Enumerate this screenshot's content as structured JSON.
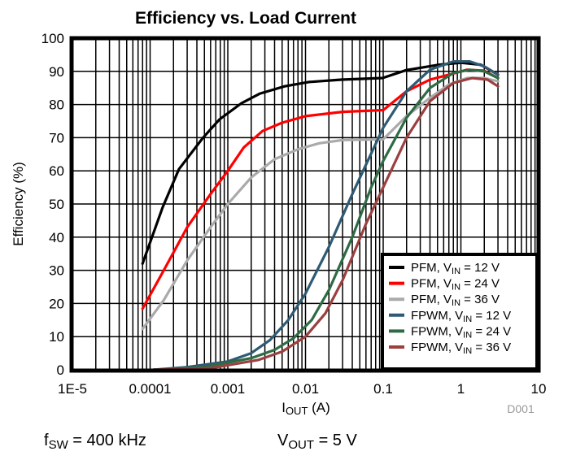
{
  "chart_data": {
    "type": "line",
    "title": "Efficiency vs. Load Current",
    "xlabel": {
      "main": "I",
      "sub": "OUT",
      "rest": " (A)"
    },
    "ylabel": "Efficiency (%)",
    "xscale": "log",
    "xlim": [
      1e-05,
      10
    ],
    "ylim": [
      0,
      100
    ],
    "grid": true,
    "xticks": [
      {
        "value": 1e-05,
        "label": "1E-5"
      },
      {
        "value": 0.0001,
        "label": "0.0001"
      },
      {
        "value": 0.001,
        "label": "0.001"
      },
      {
        "value": 0.01,
        "label": "0.01"
      },
      {
        "value": 0.1,
        "label": "0.1"
      },
      {
        "value": 1,
        "label": "1"
      },
      {
        "value": 10,
        "label": "10"
      }
    ],
    "yticks": [
      {
        "value": 0,
        "label": "0"
      },
      {
        "value": 10,
        "label": "10"
      },
      {
        "value": 20,
        "label": "20"
      },
      {
        "value": 30,
        "label": "30"
      },
      {
        "value": 40,
        "label": "40"
      },
      {
        "value": 50,
        "label": "50"
      },
      {
        "value": 60,
        "label": "60"
      },
      {
        "value": 70,
        "label": "70"
      },
      {
        "value": 80,
        "label": "80"
      },
      {
        "value": 90,
        "label": "90"
      },
      {
        "value": 100,
        "label": "100"
      }
    ],
    "legend_position": "bottom-right",
    "series": [
      {
        "name": "PFM, VIN = 12 V",
        "mode": "PFM",
        "vin": "12 V",
        "color": "#000000",
        "x": [
          8e-05,
          0.000145,
          0.000235,
          0.00048,
          0.00078,
          0.0015,
          0.0026,
          0.0054,
          0.011,
          0.029,
          0.098,
          0.2,
          0.53,
          1,
          1.8,
          3
        ],
        "y": [
          32,
          49,
          60.5,
          70,
          75.5,
          80.4,
          83.3,
          85.5,
          86.8,
          87.5,
          88,
          90.4,
          92,
          92.6,
          92,
          89
        ]
      },
      {
        "name": "PFM, VIN = 24 V",
        "mode": "PFM",
        "vin": "24 V",
        "color": "#ff0000",
        "x": [
          8e-05,
          0.00015,
          0.0003,
          0.0006,
          0.001,
          0.0016,
          0.0028,
          0.005,
          0.01,
          0.03,
          0.1,
          0.2,
          0.4,
          0.7,
          1.2,
          2,
          3
        ],
        "y": [
          18.4,
          30,
          43,
          53,
          60,
          67,
          72,
          74.5,
          76.5,
          77.8,
          78.3,
          84,
          87.5,
          89,
          90.5,
          90.2,
          88
        ]
      },
      {
        "name": "PFM, VIN = 36 V",
        "mode": "PFM",
        "vin": "36 V",
        "color": "#aaaaaa",
        "x": [
          8e-05,
          0.00015,
          0.0003,
          0.0006,
          0.001,
          0.002,
          0.004,
          0.008,
          0.015,
          0.03,
          0.1,
          0.2,
          0.4,
          0.7,
          1.2,
          2,
          3
        ],
        "y": [
          12.3,
          21,
          33,
          43,
          50,
          58,
          63.5,
          66.5,
          68.3,
          69.3,
          69.5,
          76.5,
          82,
          86,
          88,
          88,
          87
        ]
      },
      {
        "name": "FPWM, VIN = 12 V",
        "mode": "FPWM",
        "vin": "12 V",
        "color": "#2e5a73",
        "x": [
          0.00011,
          0.0003,
          0.001,
          0.002,
          0.0035,
          0.006,
          0.01,
          0.02,
          0.04,
          0.1,
          0.2,
          0.4,
          0.8,
          1.3,
          2,
          3
        ],
        "y": [
          0,
          0.8,
          2.5,
          5,
          9,
          15,
          23,
          37,
          53,
          73,
          84,
          90.5,
          93,
          93,
          91.5,
          89
        ]
      },
      {
        "name": "FPWM, VIN = 24 V",
        "mode": "FPWM",
        "vin": "24 V",
        "color": "#2e6b45",
        "x": [
          0.00011,
          0.0005,
          0.002,
          0.004,
          0.007,
          0.012,
          0.02,
          0.04,
          0.07,
          0.1,
          0.2,
          0.4,
          0.8,
          1.3,
          2,
          3
        ],
        "y": [
          0,
          0.8,
          3.5,
          6,
          9.5,
          15,
          24,
          40,
          55,
          63,
          76,
          85,
          89.5,
          90.5,
          90,
          88
        ]
      },
      {
        "name": "FPWM, VIN = 36 V",
        "mode": "FPWM",
        "vin": "36 V",
        "color": "#9b3f3f",
        "x": [
          0.00011,
          0.0006,
          0.0025,
          0.005,
          0.01,
          0.018,
          0.03,
          0.06,
          0.1,
          0.2,
          0.4,
          0.8,
          1.4,
          2.2,
          3
        ],
        "y": [
          0,
          0.5,
          3,
          5.5,
          10,
          17,
          27,
          44,
          55,
          70,
          81,
          86.5,
          88,
          87.5,
          85.5
        ]
      }
    ],
    "legend": [
      {
        "prefix": "PFM, V",
        "sub": "IN",
        "suffix": " = 12 V",
        "color": "#000000"
      },
      {
        "prefix": "PFM, V",
        "sub": "IN",
        "suffix": " = 24 V",
        "color": "#ff0000"
      },
      {
        "prefix": "PFM, V",
        "sub": "IN",
        "suffix": " = 36 V",
        "color": "#aaaaaa"
      },
      {
        "prefix": "FPWM, V",
        "sub": "IN",
        "suffix": " = 12 V",
        "color": "#2e5a73"
      },
      {
        "prefix": "FPWM, V",
        "sub": "IN",
        "suffix": " = 24 V",
        "color": "#2e6b45"
      },
      {
        "prefix": "FPWM, V",
        "sub": "IN",
        "suffix": " = 36 V",
        "color": "#9b3f3f"
      }
    ],
    "figure_id": "D001",
    "annotations": [
      {
        "main": "f",
        "sub": "SW",
        "rest": " = 400 kHz"
      },
      {
        "main": "V",
        "sub": "OUT",
        "rest": " = 5 V"
      }
    ]
  }
}
